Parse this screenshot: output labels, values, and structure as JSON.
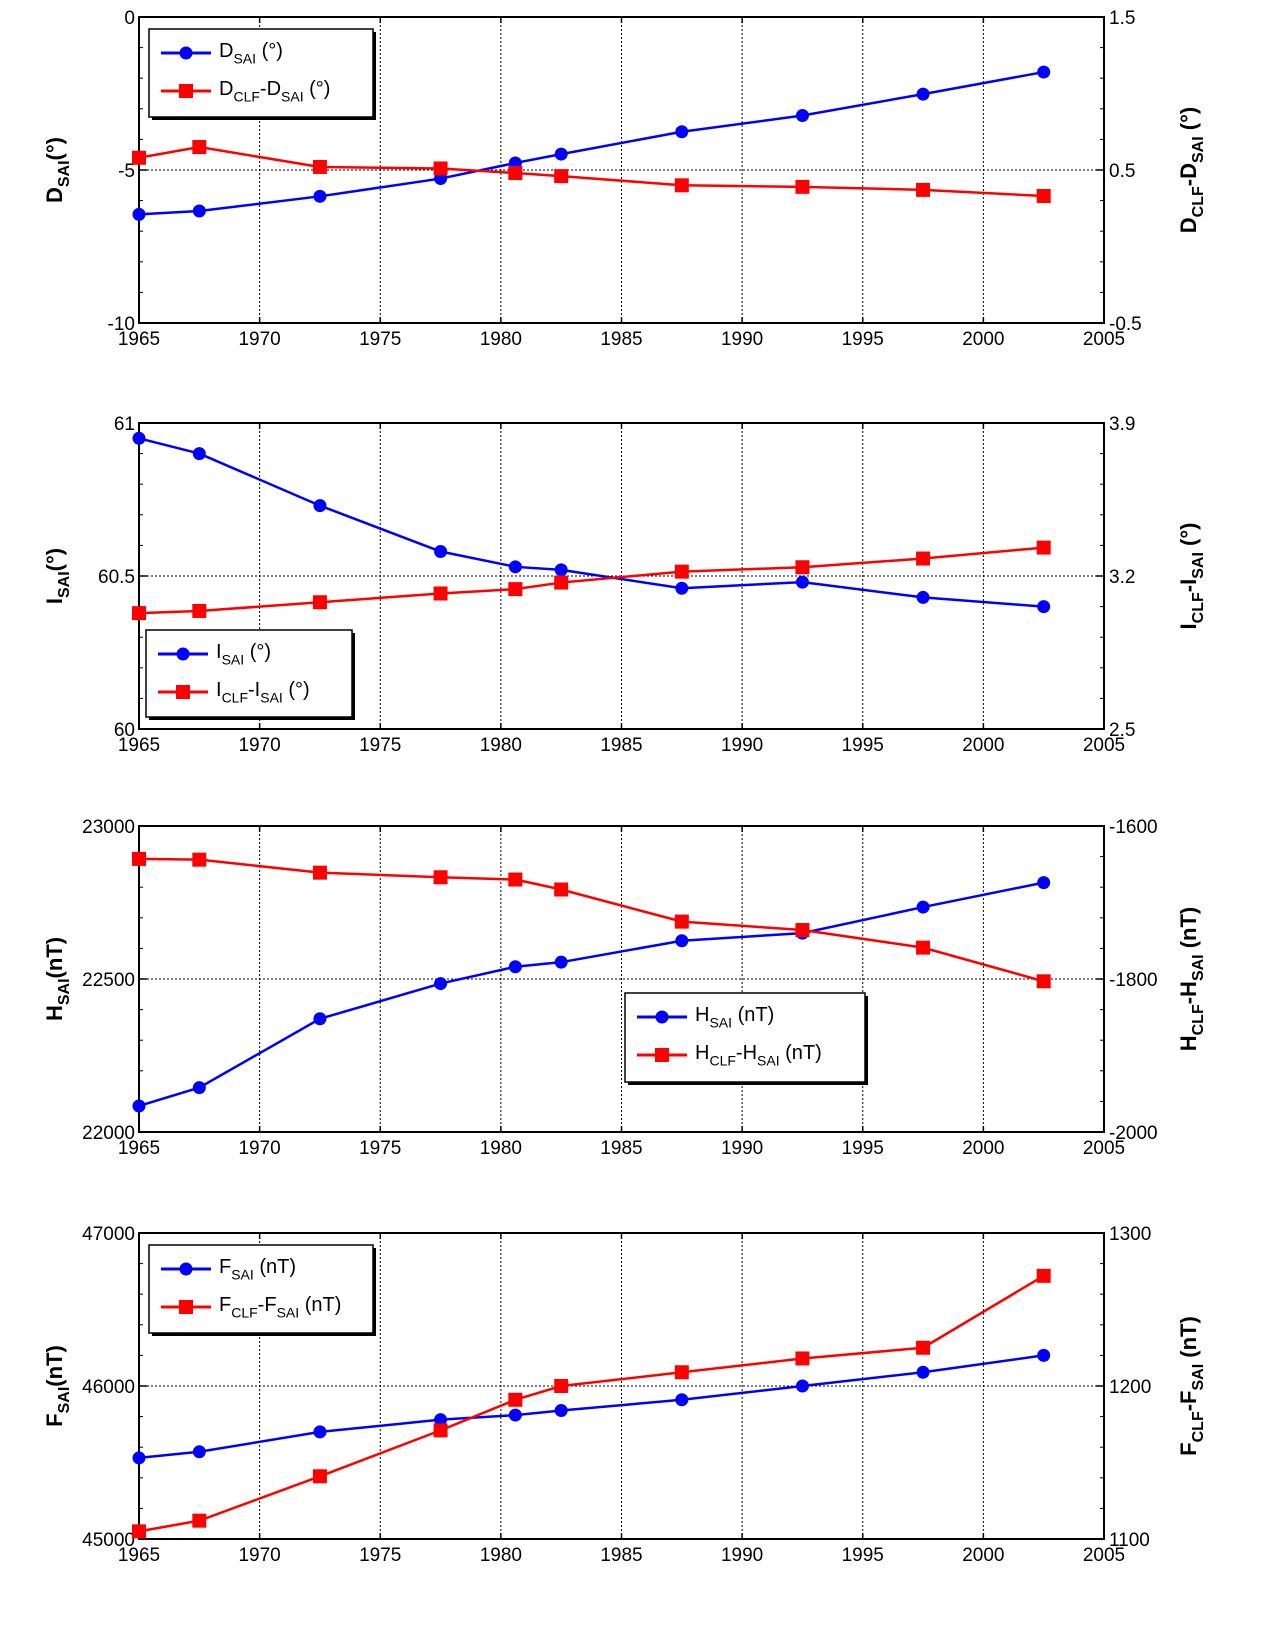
{
  "chart_data": [
    {
      "type": "line",
      "x": [
        1965,
        1967.5,
        1972.5,
        1977.5,
        1980.6,
        1982.5,
        1987.5,
        1992.5,
        1997.5,
        2002.5
      ],
      "xlim": [
        1965,
        2005
      ],
      "xticks": [
        "1965",
        "1970",
        "1975",
        "1980",
        "1985",
        "1990",
        "1995",
        "2000",
        "2005"
      ],
      "ylim": [
        -10,
        0
      ],
      "yticks": [
        "-10",
        "-5",
        "0"
      ],
      "y2lim": [
        -0.5,
        1.5
      ],
      "y2ticks": [
        "-0.5",
        "0.5",
        "1.5"
      ],
      "ylabel": {
        "main": "D",
        "sub": "SAI",
        "tail": "(°)"
      },
      "y2label": {
        "main": "D",
        "sub1": "CLF",
        "mid": "-D",
        "sub2": "SAI",
        "tail": " (°)"
      },
      "legend_position": "top-left",
      "grid": true,
      "series": [
        {
          "name": {
            "main": "D",
            "sub": "SAI",
            "tail": " (°)"
          },
          "axis": "left",
          "color": "#0000ff",
          "marker": "circle",
          "values": [
            -6.45,
            -6.34,
            -5.86,
            -5.28,
            -4.77,
            -4.48,
            -3.75,
            -3.22,
            -2.52,
            -1.8
          ]
        },
        {
          "name": {
            "main": "D",
            "sub1": "CLF",
            "mid": "-D",
            "sub2": "SAI",
            "tail": " (°)"
          },
          "axis": "right",
          "color": "#ff0000",
          "marker": "square",
          "values": [
            0.58,
            0.65,
            0.52,
            0.51,
            0.48,
            0.46,
            0.4,
            0.39,
            0.37,
            0.33
          ]
        }
      ]
    },
    {
      "type": "line",
      "x": [
        1965,
        1967.5,
        1972.5,
        1977.5,
        1980.6,
        1982.5,
        1987.5,
        1992.5,
        1997.5,
        2002.5
      ],
      "xlim": [
        1965,
        2005
      ],
      "xticks": [
        "1965",
        "1970",
        "1975",
        "1980",
        "1985",
        "1990",
        "1995",
        "2000",
        "2005"
      ],
      "ylim": [
        60,
        61
      ],
      "yticks": [
        "60",
        "60.5",
        "61"
      ],
      "y2lim": [
        2.5,
        3.9
      ],
      "y2ticks": [
        "2.5",
        "3.2",
        "3.9"
      ],
      "ylabel": {
        "main": "I",
        "sub": "SAI",
        "tail": "(°)"
      },
      "y2label": {
        "main": "I",
        "sub1": "CLF",
        "mid": "-I",
        "sub2": "SAI",
        "tail": " (°)"
      },
      "legend_position": "lower-left",
      "grid": true,
      "series": [
        {
          "name": {
            "main": "I",
            "sub": "SAI",
            "tail": " (°)"
          },
          "axis": "left",
          "color": "#0000ff",
          "marker": "circle",
          "values": [
            60.95,
            60.9,
            60.73,
            60.58,
            60.53,
            60.52,
            60.46,
            60.48,
            60.43,
            60.4
          ]
        },
        {
          "name": {
            "main": "I",
            "sub1": "CLF",
            "mid": "-I",
            "sub2": "SAI",
            "tail": " (°)"
          },
          "axis": "right",
          "color": "#ff0000",
          "marker": "square",
          "values": [
            3.03,
            3.04,
            3.08,
            3.12,
            3.14,
            3.17,
            3.22,
            3.24,
            3.28,
            3.33
          ]
        }
      ]
    },
    {
      "type": "line",
      "x": [
        1965,
        1967.5,
        1972.5,
        1977.5,
        1980.6,
        1982.5,
        1987.5,
        1992.5,
        1997.5,
        2002.5
      ],
      "xlim": [
        1965,
        2005
      ],
      "xticks": [
        "1965",
        "1970",
        "1975",
        "1980",
        "1985",
        "1990",
        "1995",
        "2000",
        "2005"
      ],
      "ylim": [
        22000,
        23000
      ],
      "yticks": [
        "22000",
        "22500",
        "23000"
      ],
      "y2lim": [
        -2000,
        -1600
      ],
      "y2ticks": [
        "-2000",
        "-1800",
        "-1600"
      ],
      "ylabel": {
        "main": "H",
        "sub": "SAI",
        "tail": "(nT)"
      },
      "y2label": {
        "main": "H",
        "sub1": "CLF",
        "mid": "-H",
        "sub2": "SAI",
        "tail": " (nT)"
      },
      "legend_position": "lower-center",
      "grid": true,
      "series": [
        {
          "name": {
            "main": "H",
            "sub": "SAI",
            "tail": " (nT)"
          },
          "axis": "left",
          "color": "#0000ff",
          "marker": "circle",
          "values": [
            22085,
            22145,
            22370,
            22485,
            22540,
            22555,
            22625,
            22650,
            22735,
            22815
          ]
        },
        {
          "name": {
            "main": "H",
            "sub1": "CLF",
            "mid": "-H",
            "sub2": "SAI",
            "tail": " (nT)"
          },
          "axis": "right",
          "color": "#ff0000",
          "marker": "square",
          "values": [
            -1643,
            -1644,
            -1661,
            -1667,
            -1670,
            -1683,
            -1725,
            -1736,
            -1759,
            -1803
          ]
        }
      ]
    },
    {
      "type": "line",
      "x": [
        1965,
        1967.5,
        1972.5,
        1977.5,
        1980.6,
        1982.5,
        1987.5,
        1992.5,
        1997.5,
        2002.5
      ],
      "xlim": [
        1965,
        2005
      ],
      "xticks": [
        "1965",
        "1970",
        "1975",
        "1980",
        "1985",
        "1990",
        "1995",
        "2000",
        "2005"
      ],
      "ylim": [
        45000,
        47000
      ],
      "yticks": [
        "45000",
        "46000",
        "47000"
      ],
      "y2lim": [
        1100,
        1300
      ],
      "y2ticks": [
        "1100",
        "1200",
        "1300"
      ],
      "ylabel": {
        "main": "F",
        "sub": "SAI",
        "tail": "(nT)"
      },
      "y2label": {
        "main": "F",
        "sub1": "CLF",
        "mid": "-F",
        "sub2": "SAI",
        "tail": " (nT)"
      },
      "legend_position": "top-left",
      "grid": true,
      "series": [
        {
          "name": {
            "main": "F",
            "sub": "SAI",
            "tail": " (nT)"
          },
          "axis": "left",
          "color": "#0000ff",
          "marker": "circle",
          "values": [
            45530,
            45570,
            45700,
            45780,
            45810,
            45840,
            45910,
            46000,
            46090,
            46200
          ]
        },
        {
          "name": {
            "main": "F",
            "sub1": "CLF",
            "mid": "-F",
            "sub2": "SAI",
            "tail": " (nT)"
          },
          "axis": "right",
          "color": "#ff0000",
          "marker": "square",
          "values": [
            1105,
            1112,
            1141,
            1171,
            1191,
            1200,
            1209,
            1218,
            1225,
            1272
          ]
        }
      ]
    }
  ]
}
